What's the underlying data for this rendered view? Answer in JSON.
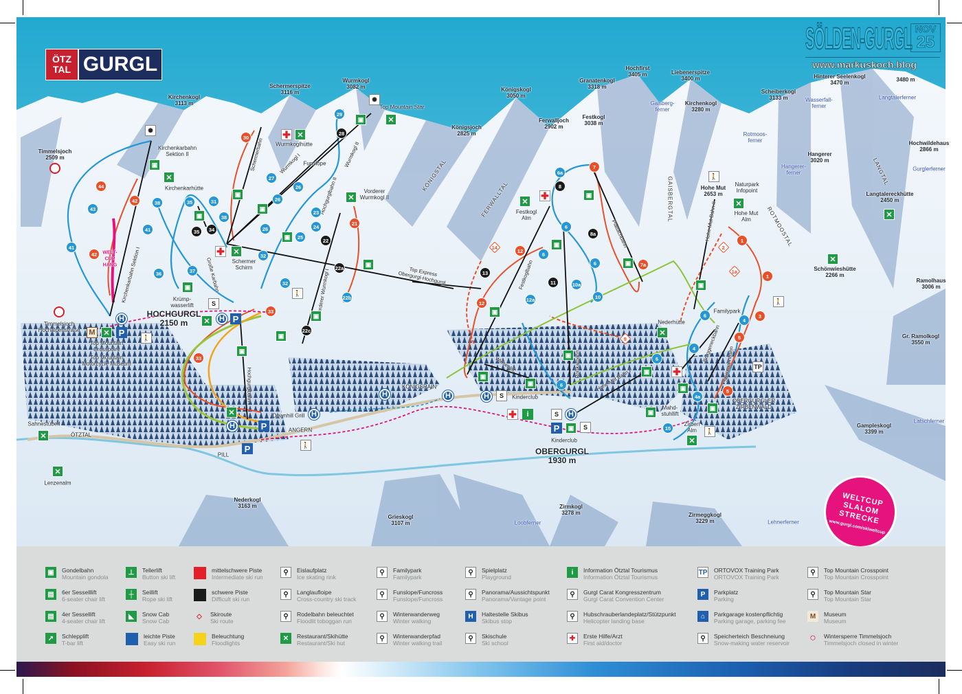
{
  "logo": {
    "otz_line1": "ÖTZ",
    "otz_line2": "TAL",
    "name": "GURGL",
    "brand_red": "#c8202e",
    "brand_navy": "#1c2d5e"
  },
  "watermark": {
    "title": "SÖLDEN-GURGL",
    "month": "NOV",
    "day": "25",
    "url": "www.markuskoch.blog"
  },
  "badge": {
    "line1": "WELTCUP",
    "line2": "SLALOM",
    "line3": "STRECKE",
    "url": "www.gurgl.com/skiweltcup",
    "color": "#e6127d"
  },
  "peaks": [
    {
      "name": "Kirchenkogl",
      "elev": "3113 m"
    },
    {
      "name": "Schermerspitze",
      "elev": "3116 m"
    },
    {
      "name": "Wurmkogl",
      "elev": "3082 m"
    },
    {
      "name": "Timmelsjoch",
      "elev": "2509 m"
    },
    {
      "name": "Königskogl",
      "elev": "3050 m"
    },
    {
      "name": "Königsjoch",
      "elev": "2825 m"
    },
    {
      "name": "Ferwalljoch",
      "elev": "2902 m"
    },
    {
      "name": "Granatenkogl",
      "elev": "3318 m"
    },
    {
      "name": "Festkogl",
      "elev": "3038 m"
    },
    {
      "name": "Hochfirst",
      "elev": "3405 m"
    },
    {
      "name": "Liebenerspitze",
      "elev": "3400 m"
    },
    {
      "name": "Kirchenkogl",
      "elev": "3280 m"
    },
    {
      "name": "Scheiberkogl",
      "elev": "3133 m"
    },
    {
      "name": "Hinterer Seelenkogl",
      "elev": "3470 m"
    },
    {
      "name": "",
      "elev": "3480 m"
    },
    {
      "name": "Hangerer",
      "elev": "3020 m"
    },
    {
      "name": "Hochwildehaus",
      "elev": "2866 m"
    },
    {
      "name": "Langtalereckhütte",
      "elev": "2450 m"
    },
    {
      "name": "Schönwieshütte",
      "elev": "2266 m"
    },
    {
      "name": "Ramolhaus",
      "elev": "3006 m"
    },
    {
      "name": "Gr. Ramolkogl",
      "elev": "3550 m"
    },
    {
      "name": "Gampleskogl",
      "elev": "3399 m"
    },
    {
      "name": "Hohe Mut",
      "elev": "2653 m"
    },
    {
      "name": "Nederkogl",
      "elev": "3163 m"
    },
    {
      "name": "Grieskogl",
      "elev": "3107 m"
    },
    {
      "name": "Zirmkogl",
      "elev": "3278 m"
    },
    {
      "name": "Zirmeggkogl",
      "elev": "3229 m"
    }
  ],
  "glaciers": [
    "Gaisberg-\nferner",
    "Rotmoos-\nferner",
    "Wasserfall-\nferner",
    "Langtalerferner",
    "Hangerer-\nferner",
    "Gurglerferner",
    "Latschferner",
    "Loobferner",
    "Lehnerferner"
  ],
  "valleys": [
    "KÖNIGSTAL",
    "FERWALLTAL",
    "GAISBERGTAL",
    "ROTMOOSTAL",
    "LANGTAL"
  ],
  "towns": [
    {
      "name": "HOCHGURGL",
      "elev": "2150 m"
    },
    {
      "name": "OBERGURGL",
      "elev": "1930 m"
    }
  ],
  "places": [
    "KÖNIGSRAIN",
    "ANGERN",
    "PILL",
    "Downhill Grill",
    "ÖTZTAL",
    "Sahnestüberl",
    "Lenzenalm",
    "Timmelsjoch\nHochalpenstraße",
    "Top Mountain\nCrosspoint",
    "Top Mountain\nMotorcycle Museum",
    "Top Mountain Star",
    "Wurmkoglhütte",
    "Kirchenkarbahn\nSektion II",
    "Kirchenkarhütte",
    "Funslope",
    "Vorderer\nWurmkogl II",
    "Schermer\nSchirm",
    "Krümp-\nwasserlift",
    "Festkogl\nAlm",
    "Naturpark\nInfopoint",
    "Hohe Mut\nAlm",
    "Nederhütte",
    "Familypark",
    "OBERGURGLER\nZIRBENWALD",
    "Mahd-\nstuhllift",
    "Zirben\nAlm",
    "Kinderclub",
    "Kinderclub"
  ],
  "lifts": [
    "Kirchenkarbahn Sektion I",
    "Schermerbahn",
    "Wurmkogl I",
    "Wurmkogl II",
    "Hochgurglbahn II",
    "Vorderer Wurmkogl I",
    "Große Karbahn",
    "Hochgurglbahn",
    "Top Express\nObergurgl-Hochgurgl",
    "Festkoglbahn",
    "Roßkarbahn",
    "Plattachbahn",
    "Hohe Mut Bahn I",
    "Steinmannbahn",
    "Bruggeneckbahn",
    "Hohe Mut Bahn II",
    "Gaislachbahn",
    "Wiesenlift",
    "Hohe Mut Bahn"
  ],
  "weltcup_label": "WELT-\nCUP\nHANG",
  "piste_markers": [
    {
      "label": "29",
      "difficulty": "easy"
    },
    {
      "label": "27",
      "difficulty": "easy"
    },
    {
      "label": "26",
      "difficulty": "easy"
    },
    {
      "label": "26",
      "difficulty": "easy"
    },
    {
      "label": "23",
      "difficulty": "easy"
    },
    {
      "label": "24",
      "difficulty": "easy"
    },
    {
      "label": "25",
      "difficulty": "easy"
    },
    {
      "label": "31",
      "difficulty": "easy"
    },
    {
      "label": "35",
      "difficulty": "easy"
    },
    {
      "label": "38",
      "difficulty": "easy"
    },
    {
      "label": "38",
      "difficulty": "easy"
    },
    {
      "label": "43",
      "difficulty": "easy"
    },
    {
      "label": "41",
      "difficulty": "easy"
    },
    {
      "label": "41",
      "difficulty": "easy"
    },
    {
      "label": "36",
      "difficulty": "easy"
    },
    {
      "label": "37",
      "difficulty": "easy"
    },
    {
      "label": "32",
      "difficulty": "easy"
    },
    {
      "label": "32",
      "difficulty": "easy"
    },
    {
      "label": "26",
      "difficulty": "easy"
    },
    {
      "label": "22b",
      "difficulty": "easy"
    },
    {
      "label": "6a",
      "difficulty": "easy"
    },
    {
      "label": "6",
      "difficulty": "easy"
    },
    {
      "label": "6",
      "difficulty": "easy"
    },
    {
      "label": "6",
      "difficulty": "easy"
    },
    {
      "label": "10a",
      "difficulty": "easy"
    },
    {
      "label": "10",
      "difficulty": "easy"
    },
    {
      "label": "12a",
      "difficulty": "easy"
    },
    {
      "label": "6",
      "difficulty": "easy"
    },
    {
      "label": "4",
      "difficulty": "easy"
    },
    {
      "label": "4",
      "difficulty": "easy"
    },
    {
      "label": "6",
      "difficulty": "easy"
    },
    {
      "label": "6",
      "difficulty": "easy"
    },
    {
      "label": "4a",
      "difficulty": "easy"
    },
    {
      "label": "15",
      "difficulty": "easy"
    },
    {
      "label": "30",
      "difficulty": "intermediate"
    },
    {
      "label": "44",
      "difficulty": "intermediate"
    },
    {
      "label": "42",
      "difficulty": "intermediate"
    },
    {
      "label": "42",
      "difficulty": "intermediate"
    },
    {
      "label": "21",
      "difficulty": "intermediate"
    },
    {
      "label": "7",
      "difficulty": "intermediate"
    },
    {
      "label": "12",
      "difficulty": "intermediate"
    },
    {
      "label": "12",
      "difficulty": "intermediate"
    },
    {
      "label": "7a",
      "difficulty": "intermediate"
    },
    {
      "label": "1",
      "difficulty": "intermediate"
    },
    {
      "label": "1",
      "difficulty": "intermediate"
    },
    {
      "label": "3",
      "difficulty": "intermediate"
    },
    {
      "label": "5",
      "difficulty": "intermediate"
    },
    {
      "label": "5",
      "difficulty": "intermediate"
    },
    {
      "label": "33",
      "difficulty": "intermediate"
    },
    {
      "label": "33",
      "difficulty": "intermediate"
    },
    {
      "label": "14",
      "difficulty": "route"
    },
    {
      "label": "2",
      "difficulty": "route"
    },
    {
      "label": "1a",
      "difficulty": "route"
    },
    {
      "label": "9",
      "difficulty": "route"
    },
    {
      "label": "28",
      "difficulty": "difficult"
    },
    {
      "label": "34",
      "difficulty": "difficult"
    },
    {
      "label": "35",
      "difficulty": "difficult"
    },
    {
      "label": "22",
      "difficulty": "difficult"
    },
    {
      "label": "22a",
      "difficulty": "difficult"
    },
    {
      "label": "22c",
      "difficulty": "difficult"
    },
    {
      "label": "8",
      "difficulty": "difficult"
    },
    {
      "label": "8a",
      "difficulty": "difficult"
    },
    {
      "label": "13",
      "difficulty": "difficult"
    },
    {
      "label": "11",
      "difficulty": "difficult"
    }
  ],
  "map_icons": [
    {
      "icon": "restaurant-icon",
      "glyph": "✕"
    },
    {
      "icon": "bus-stop-icon",
      "glyph": "H"
    },
    {
      "icon": "parking-icon",
      "glyph": "P"
    },
    {
      "icon": "first-aid-icon",
      "glyph": "✚"
    },
    {
      "icon": "information-icon",
      "glyph": "i"
    },
    {
      "icon": "gondola-icon",
      "glyph": "▣"
    },
    {
      "icon": "museum-icon",
      "glyph": "M"
    },
    {
      "icon": "closed-road-icon",
      "glyph": ""
    },
    {
      "icon": "walking-icon",
      "glyph": "🚶"
    },
    {
      "icon": "panorama-icon",
      "glyph": "✺"
    },
    {
      "icon": "ski-school-icon",
      "glyph": "S"
    },
    {
      "icon": "training-park-icon",
      "glyph": "TP"
    }
  ],
  "legend": [
    {
      "icon": "gondola-icon",
      "de": "Gondelbahn",
      "en": "Mountain gondola"
    },
    {
      "icon": "six-seater-chairlift-icon",
      "de": "6er Sesselllift",
      "en": "6-seater chair lift"
    },
    {
      "icon": "four-seater-chairlift-icon",
      "de": "4er Sessellift",
      "en": "4-seater chair lift"
    },
    {
      "icon": "t-bar-lift-icon",
      "de": "Schlepplift",
      "en": "T-bar lift"
    },
    {
      "icon": "button-lift-icon",
      "de": "Tellerlift",
      "en": "Button ski lift"
    },
    {
      "icon": "rope-lift-icon",
      "de": "Seillift",
      "en": "Rope ski lift"
    },
    {
      "icon": "snow-cab-icon",
      "de": "Snow Cab",
      "en": "Snow Cab"
    },
    {
      "icon": "easy-run-swatch",
      "de": "leichte Piste",
      "en": "Easy ski run",
      "color": "#1f5fae"
    },
    {
      "icon": "intermediate-run-swatch",
      "de": "mittelschwere Piste",
      "en": "Intermediate ski run",
      "color": "#e2202a"
    },
    {
      "icon": "difficult-run-swatch",
      "de": "schwere Piste",
      "en": "Difficult ski run",
      "color": "#1a1a1a"
    },
    {
      "icon": "ski-route-icon",
      "de": "Skiroute",
      "en": "Ski route"
    },
    {
      "icon": "floodlights-swatch",
      "de": "Beleuchtung",
      "en": "Floodlights",
      "color": "#f5d31c"
    },
    {
      "icon": "ice-skating-icon",
      "de": "Eislaufplatz",
      "en": "Ice skating rink"
    },
    {
      "icon": "cross-country-icon",
      "de": "Langlaufloipe",
      "en": "Cross-country ski track"
    },
    {
      "icon": "toboggan-icon",
      "de": "Rodelbahn beleuchtet",
      "en": "Floodlit toboggan run"
    },
    {
      "icon": "restaurant-icon",
      "de": "Restaurant/Skihütte",
      "en": "Restaurant/Ski hut"
    },
    {
      "icon": "familypark-icon",
      "de": "Familypark",
      "en": "Familypark"
    },
    {
      "icon": "funslope-icon",
      "de": "Funslope/Funcross",
      "en": "Funslope/Funcross"
    },
    {
      "icon": "winter-walking-icon",
      "de": "Winterwanderweg",
      "en": "Winter walking"
    },
    {
      "icon": "winter-trail-icon",
      "de": "Winterwanderpfad",
      "en": "Winter walking trail"
    },
    {
      "icon": "playground-icon",
      "de": "Spielplatz",
      "en": "Playground"
    },
    {
      "icon": "panorama-icon",
      "de": "Panorama/Aussichtspunkt",
      "en": "Panorama/Vantage point"
    },
    {
      "icon": "bus-stop-icon",
      "de": "Haltestelle Skibus",
      "en": "Skibus stop"
    },
    {
      "icon": "ski-school-icon",
      "de": "Skischule",
      "en": "Ski school"
    },
    {
      "icon": "information-icon",
      "de": "Information Ötztal Tourismus",
      "en": "Information Ötztal Tourismus"
    },
    {
      "icon": "convention-center-icon",
      "de": "Gurgl Carat Kongresszentrum",
      "en": "Gurgl Carat Convention Center"
    },
    {
      "icon": "helicopter-icon",
      "de": "Hubschrauberlandeplatz/Stützpunkt",
      "en": "Helicopter landing base"
    },
    {
      "icon": "first-aid-icon",
      "de": "Erste Hilfe/Arzt",
      "en": "First aid/doctor"
    },
    {
      "icon": "training-park-icon",
      "de": "ORTOVOX Training Park",
      "en": "ORTOVOX Training Park"
    },
    {
      "icon": "parking-icon",
      "de": "Parkplatz",
      "en": "Parking"
    },
    {
      "icon": "parking-garage-icon",
      "de": "Parkgarage kostenpflichtig",
      "en": "Parking garage, parking fee"
    },
    {
      "icon": "water-reservoir-icon",
      "de": "Speicherteich Beschneiung",
      "en": "Snow-making water reservoir"
    },
    {
      "icon": "crosspoint-icon",
      "de": "Top Mountain Crosspoint",
      "en": "Top Mountain Crosspoint"
    },
    {
      "icon": "top-mountain-star-icon",
      "de": "Top Mountain Star",
      "en": "Top Mountain Star"
    },
    {
      "icon": "museum-icon",
      "de": "Museum",
      "en": "Museum"
    },
    {
      "icon": "closed-road-icon",
      "de": "Wintersperre Timmelsjoch",
      "en": "Timmelsjoch closed in winter"
    }
  ],
  "colors": {
    "sky": "#3fb8d9",
    "easy": "#2596d6",
    "intermediate": "#e8502a",
    "difficult": "#1a1a1a",
    "legend_bg": "#d9dcdb",
    "restaurant": "#1f9a45",
    "walking_trail": "#e0147a"
  }
}
